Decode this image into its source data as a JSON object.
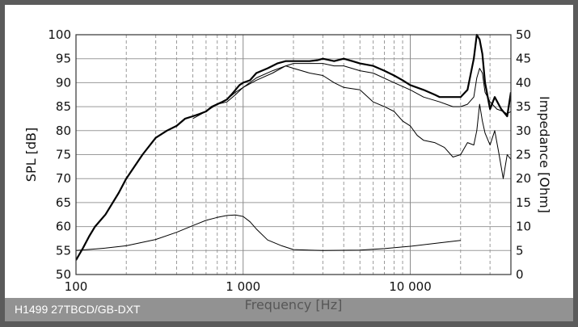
{
  "caption": "H1499 27TBCD/GB-DXT",
  "close_label": "×",
  "chart_data": {
    "type": "line",
    "x_scale": "log",
    "xlim": [
      100,
      40000
    ],
    "ylim": [
      50,
      100
    ],
    "y2lim": [
      0,
      50
    ],
    "xlabel": "Frequency [Hz]",
    "ylabel": "SPL [dB]",
    "y2label": "Impedance [Ohm]",
    "grid": true,
    "x_ticks": [
      100,
      1000,
      10000
    ],
    "x_tick_labels": [
      "100",
      "1 000",
      "10 000"
    ],
    "y_ticks": [
      50,
      55,
      60,
      65,
      70,
      75,
      80,
      85,
      90,
      95,
      100
    ],
    "y_tick_labels": [
      "50",
      "55",
      "60",
      "65",
      "70",
      "75",
      "80",
      "85",
      "90",
      "95",
      "100"
    ],
    "y2_ticks": [
      0,
      5,
      10,
      15,
      20,
      25,
      30,
      35,
      40,
      45,
      50
    ],
    "y2_tick_labels": [
      "0",
      "5",
      "10",
      "15",
      "20",
      "25",
      "30",
      "35",
      "40",
      "45",
      "50"
    ],
    "series": [
      {
        "axis": "left",
        "stroke": 2.2,
        "x": [
          100,
          110,
          120,
          130,
          150,
          180,
          200,
          250,
          300,
          350,
          400,
          450,
          500,
          550,
          600,
          650,
          700,
          750,
          800,
          850,
          900,
          950,
          1000,
          1100,
          1200,
          1400,
          1600,
          1800,
          2000,
          2200,
          2500,
          2800,
          3000,
          3500,
          4000,
          4500,
          5000,
          6000,
          7000,
          8000,
          9000,
          10000,
          12000,
          14000,
          15000,
          17000,
          20000,
          22000,
          24000,
          25000,
          26000,
          27000,
          28000,
          30000,
          32000,
          35000,
          38000,
          40000
        ],
        "y": [
          53,
          55.5,
          58,
          60,
          62.5,
          67,
          70,
          75,
          78.5,
          80,
          81,
          82.5,
          83,
          83.5,
          84,
          85,
          85.5,
          86,
          86.5,
          87.5,
          88.5,
          89.5,
          90,
          90.5,
          92,
          93,
          94,
          94.5,
          94.5,
          94.5,
          94.5,
          94.7,
          95,
          94.5,
          95,
          94.5,
          94,
          93.5,
          92.5,
          91.5,
          90.5,
          89.5,
          88.5,
          87.5,
          87,
          87,
          87,
          88.5,
          95,
          100,
          99,
          96,
          90,
          84.5,
          87,
          84.5,
          83,
          88
        ]
      },
      {
        "axis": "left",
        "stroke": 1.0,
        "x": [
          500,
          600,
          700,
          800,
          900,
          1000,
          1200,
          1500,
          1800,
          2000,
          2500,
          3000,
          3500,
          4000,
          5000,
          6000,
          8000,
          10000,
          12000,
          15000,
          18000,
          20000,
          22000,
          24000,
          25000,
          26000,
          27000,
          28000,
          30000,
          33000,
          36000,
          38000,
          40000
        ],
        "y": [
          83,
          84,
          85.5,
          86.5,
          88,
          89,
          91,
          92.5,
          93.5,
          94,
          94,
          94,
          93.5,
          93.5,
          92.5,
          92,
          90,
          88.5,
          87,
          86,
          85,
          85,
          85.5,
          87,
          91,
          93,
          92,
          88,
          86,
          84.5,
          84,
          83.5,
          84
        ]
      },
      {
        "axis": "left",
        "stroke": 1.0,
        "x": [
          500,
          600,
          700,
          800,
          900,
          1000,
          1200,
          1500,
          1800,
          2000,
          2500,
          3000,
          3500,
          4000,
          5000,
          6000,
          7000,
          8000,
          9000,
          10000,
          11000,
          12000,
          14000,
          16000,
          18000,
          20000,
          22000,
          24000,
          25000,
          26000,
          27000,
          28000,
          30000,
          32000,
          34000,
          36000,
          38000,
          40000
        ],
        "y": [
          82.5,
          84,
          85.5,
          86,
          87.5,
          89,
          90.5,
          92,
          93.5,
          93,
          92,
          91.5,
          90,
          89,
          88.5,
          86,
          85,
          84,
          82,
          81,
          79,
          78,
          77.5,
          76.5,
          74.5,
          75,
          77.5,
          77,
          80,
          85.5,
          82,
          79.5,
          77,
          80,
          75,
          70,
          75,
          74
        ]
      },
      {
        "axis": "right",
        "stroke": 1.0,
        "x": [
          100,
          150,
          200,
          300,
          400,
          500,
          600,
          700,
          800,
          900,
          1000,
          1100,
          1200,
          1400,
          1700,
          2000,
          3000,
          5000,
          7000,
          10000,
          15000,
          20000
        ],
        "y": [
          5,
          5.5,
          6,
          7.3,
          8.8,
          10.2,
          11.3,
          11.9,
          12.3,
          12.4,
          12.1,
          11,
          9.5,
          7.2,
          6,
          5.2,
          5,
          5.1,
          5.4,
          5.9,
          6.6,
          7.1
        ]
      }
    ]
  }
}
